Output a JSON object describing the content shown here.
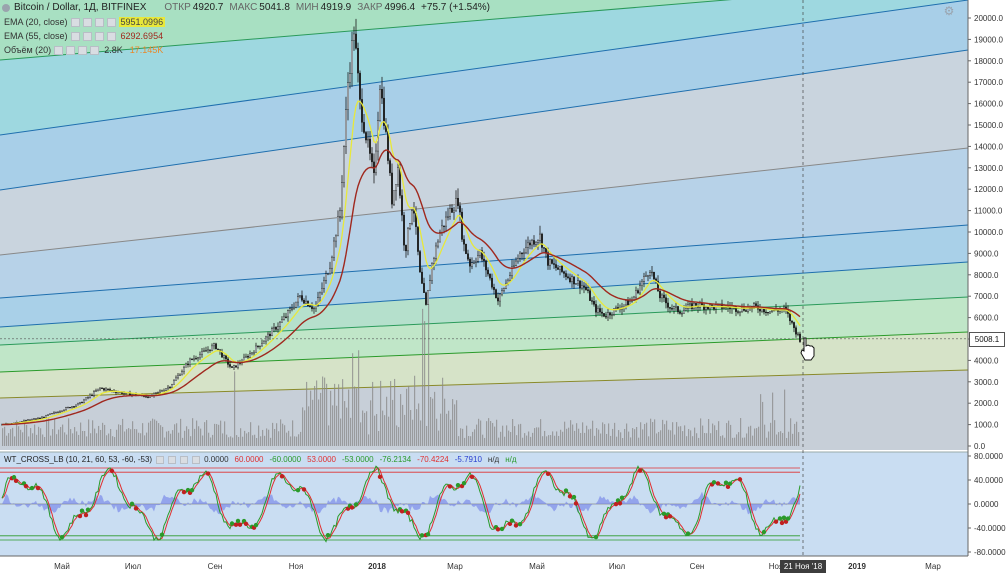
{
  "header": {
    "symbol": "Bitcoin / Dollar, 1Д, BITFINEX",
    "ohlc": [
      {
        "label": "ОТКР",
        "value": "4920.7"
      },
      {
        "label": "МАКС",
        "value": "5041.8"
      },
      {
        "label": "МИН",
        "value": "4919.9"
      },
      {
        "label": "ЗАКР",
        "value": "4996.4"
      },
      {
        "label": "",
        "value": "+75.7 (+1.54%)"
      }
    ]
  },
  "indicators": [
    {
      "name": "EMA (20, close)",
      "value": "5951.0996",
      "color": "#e8e83a"
    },
    {
      "name": "EMA (55, close)",
      "value": "6292.6954",
      "color": "#a0281e"
    },
    {
      "name": "Объём (20)",
      "value": "2.8K",
      "value2": "17.145K",
      "color": "#e8892a"
    }
  ],
  "wt_legend": {
    "name": "WT_CROSS_LB (10, 21, 60, 53, -60, -53)",
    "values": [
      {
        "v": "0.0000",
        "c": "#333333"
      },
      {
        "v": "60.0000",
        "c": "#e03030"
      },
      {
        "v": "-60.0000",
        "c": "#2a9a2a"
      },
      {
        "v": "53.0000",
        "c": "#e03030"
      },
      {
        "v": "-53.0000",
        "c": "#2a9a2a"
      },
      {
        "v": "-76.2134",
        "c": "#2a9a2a"
      },
      {
        "v": "-70.4224",
        "c": "#e03030"
      },
      {
        "v": "-5.7910",
        "c": "#2a3fd0"
      },
      {
        "v": "н/д",
        "c": "#333333"
      },
      {
        "v": "н/д",
        "c": "#2a9a2a"
      }
    ]
  },
  "price_axis": [
    "20000.0",
    "19000.0",
    "18000.0",
    "17000.0",
    "16000.0",
    "15000.0",
    "14000.0",
    "13000.0",
    "12000.0",
    "11000.0",
    "10000.0",
    "9000.0",
    "8000.0",
    "7000.0",
    "6000.0",
    "5000.0",
    "4000.0",
    "3000.0",
    "2000.0",
    "1000.0",
    "0.0"
  ],
  "wt_axis": [
    "80.0000",
    "40.0000",
    "0.0000",
    "-40.0000",
    "-80.0000"
  ],
  "time_axis": [
    "Май",
    "Июл",
    "Сен",
    "Ноя",
    "2018",
    "Мар",
    "Май",
    "Июл",
    "Сен",
    "Ноя",
    "2019",
    "Мар"
  ],
  "current_price": "5008.1",
  "cursor_date": "21 Ноя '18",
  "colors": {
    "bull": "#1b1b1b",
    "ema20": "#e8e83a",
    "ema55": "#a0281e",
    "volume": "#8a8a8a",
    "wt1": "#2a9a2a",
    "wt2": "#e03030",
    "wtdiff": "#6f7fe8"
  },
  "icons": {
    "settings": "gear-icon",
    "cursor": "hand-pointer-icon"
  }
}
